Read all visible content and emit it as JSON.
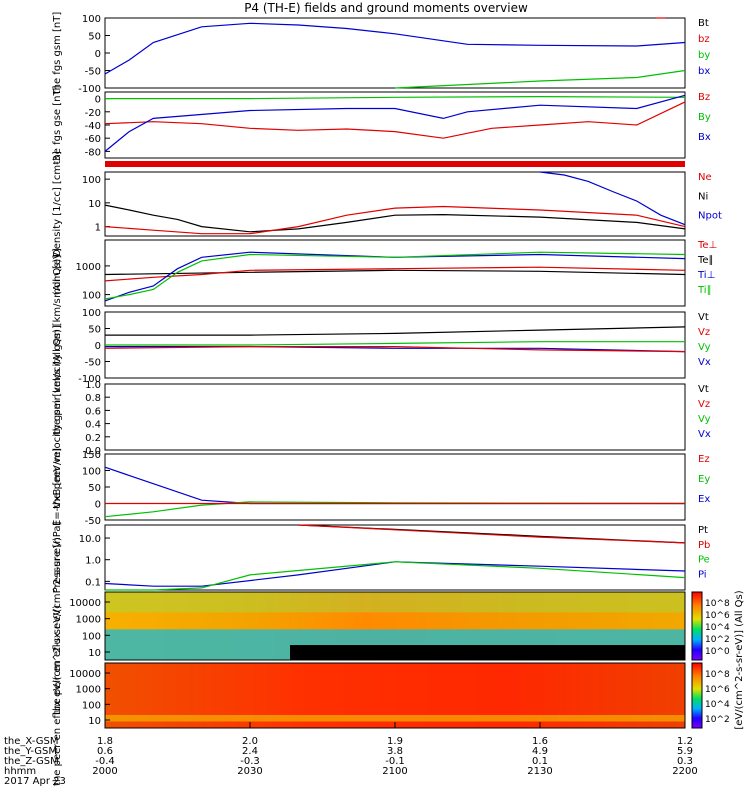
{
  "title": "P4 (TH-E) fields and ground moments overview",
  "footer": {
    "rows": [
      {
        "label": "the_X-GSM",
        "values": [
          "1.8",
          "2.0",
          "1.9",
          "1.6",
          "1.2"
        ]
      },
      {
        "label": "the_Y-GSM",
        "values": [
          "0.6",
          "2.4",
          "3.8",
          "4.9",
          "5.9"
        ]
      },
      {
        "label": "the_Z-GSM",
        "values": [
          "-0.4",
          "-0.3",
          "-0.1",
          "0.1",
          "0.3"
        ]
      },
      {
        "label": "hhmm",
        "values": [
          "2000",
          "2030",
          "2100",
          "2130",
          "2200"
        ]
      }
    ],
    "date": "2017 Apr 23"
  },
  "colorbars": [
    {
      "ticks": [
        "10^8",
        "10^6",
        "10^4",
        "10^2",
        "10^0"
      ]
    },
    {
      "ticks": [
        "10^8",
        "10^6",
        "10^4",
        "10^2"
      ]
    }
  ],
  "colorbar_label": "[eV/(cm^2-s-sr-eV)] (All Qs)",
  "chart_data": [
    {
      "type": "line",
      "ylabel": "the fgs gsm [nT]",
      "ylim": [
        -100,
        100
      ],
      "yticks": [
        "100",
        "50",
        "0",
        "-50",
        "-100"
      ],
      "legend": [
        "Bt",
        "bz",
        "by",
        "bx"
      ],
      "legend_colors": [
        "#000000",
        "#e00000",
        "#00c000",
        "#0000d0"
      ],
      "series": [
        {
          "name": "bx",
          "color": "#0000d0",
          "x": [
            2000,
            2005,
            2010,
            2020,
            2030,
            2040,
            2050,
            2100,
            2110,
            2115,
            2130,
            2150,
            2200
          ],
          "values": [
            -60,
            -20,
            30,
            75,
            85,
            80,
            70,
            55,
            35,
            25,
            22,
            20,
            30
          ]
        },
        {
          "name": "by",
          "color": "#00c000",
          "x": [
            2100,
            2130,
            2150,
            2200
          ],
          "values": [
            -100,
            -80,
            -70,
            -50
          ]
        },
        {
          "name": "bz",
          "color": "#e00000",
          "x": [
            2154,
            2156
          ],
          "values": [
            100,
            100
          ]
        }
      ]
    },
    {
      "type": "line",
      "ylabel": "the fgs gse [nT]",
      "ylim": [
        -90,
        10
      ],
      "yticks": [
        "0",
        "-20",
        "-40",
        "-60",
        "-80"
      ],
      "legend": [
        "Bz",
        "By",
        "Bx"
      ],
      "legend_colors": [
        "#e00000",
        "#00c000",
        "#0000d0"
      ],
      "series": [
        {
          "name": "Bz",
          "color": "#e00000",
          "x": [
            2000,
            2010,
            2020,
            2030,
            2040,
            2050,
            2100,
            2110,
            2120,
            2130,
            2140,
            2150,
            2200
          ],
          "values": [
            -38,
            -35,
            -38,
            -45,
            -48,
            -46,
            -50,
            -60,
            -45,
            -40,
            -35,
            -40,
            -5
          ]
        },
        {
          "name": "By",
          "color": "#00c000",
          "x": [
            2000,
            2030,
            2100,
            2130,
            2200
          ],
          "values": [
            0,
            0,
            2,
            3,
            2
          ]
        },
        {
          "name": "Bx",
          "color": "#0000d0",
          "x": [
            2000,
            2005,
            2010,
            2030,
            2050,
            2100,
            2110,
            2115,
            2130,
            2150,
            2200
          ],
          "values": [
            -80,
            -50,
            -30,
            -18,
            -15,
            -15,
            -30,
            -20,
            -10,
            -15,
            5
          ]
        }
      ]
    },
    {
      "type": "line",
      "ylabel": "Density [1/cc] [cm-3]",
      "ylim": [
        0.4,
        200
      ],
      "yscale": "log",
      "yticks": [
        "100",
        "10",
        "1"
      ],
      "legend": [
        "Ne",
        "Ni",
        "Npot"
      ],
      "legend_colors": [
        "#e00000",
        "#000000",
        "#0000d0"
      ],
      "series": [
        {
          "name": "Ni",
          "color": "#000000",
          "x": [
            2000,
            2005,
            2010,
            2015,
            2020,
            2030,
            2040,
            2050,
            2100,
            2110,
            2130,
            2150,
            2200
          ],
          "values": [
            8,
            5,
            3,
            2,
            1,
            0.6,
            0.8,
            1.5,
            3,
            3.2,
            2.5,
            1.5,
            0.8
          ]
        },
        {
          "name": "Ne",
          "color": "#e00000",
          "x": [
            2000,
            2010,
            2020,
            2030,
            2040,
            2050,
            2100,
            2110,
            2130,
            2150,
            2200
          ],
          "values": [
            1,
            0.7,
            0.5,
            0.5,
            1,
            3,
            6,
            7,
            5,
            3,
            1
          ]
        },
        {
          "name": "Npot",
          "color": "#0000d0",
          "x": [
            2130,
            2135,
            2140,
            2145,
            2150,
            2155,
            2200
          ],
          "values": [
            200,
            150,
            80,
            30,
            12,
            3,
            1.2
          ]
        }
      ]
    },
    {
      "type": "line",
      "ylabel": "mom [eV]",
      "ylim": [
        40,
        8000
      ],
      "yscale": "log",
      "yticks": [
        "1000",
        "100"
      ],
      "legend": [
        "Te⊥",
        "Te∥",
        "Ti⊥",
        "Ti∥"
      ],
      "legend_colors": [
        "#e00000",
        "#000000",
        "#0000d0",
        "#00c000"
      ],
      "series": [
        {
          "name": "Te∥",
          "color": "#000000",
          "x": [
            2000,
            2030,
            2100,
            2130,
            2200
          ],
          "values": [
            500,
            600,
            700,
            650,
            500
          ]
        },
        {
          "name": "Te⊥",
          "color": "#e00000",
          "x": [
            2000,
            2010,
            2020,
            2030,
            2100,
            2130,
            2200
          ],
          "values": [
            300,
            400,
            500,
            700,
            800,
            900,
            700
          ]
        },
        {
          "name": "Ti⊥",
          "color": "#0000d0",
          "x": [
            2000,
            2005,
            2010,
            2015,
            2020,
            2030,
            2100,
            2130,
            2200
          ],
          "values": [
            60,
            120,
            200,
            800,
            2000,
            3000,
            2000,
            2500,
            1800
          ]
        },
        {
          "name": "Ti∥",
          "color": "#00c000",
          "x": [
            2000,
            2005,
            2010,
            2015,
            2020,
            2030,
            2100,
            2130,
            2200
          ],
          "values": [
            70,
            100,
            150,
            600,
            1500,
            2500,
            2000,
            3000,
            2500
          ]
        }
      ]
    },
    {
      "type": "line",
      "ylabel": "the peir velocity gsm [km/s (All Qs)]",
      "ylim": [
        -100,
        100
      ],
      "yticks": [
        "100",
        "50",
        "0",
        "-50",
        "-100"
      ],
      "legend": [
        "Vt",
        "Vz",
        "Vy",
        "Vx"
      ],
      "legend_colors": [
        "#000000",
        "#e00000",
        "#00c000",
        "#0000d0"
      ],
      "series": [
        {
          "name": "Vt",
          "color": "#000000",
          "x": [
            2000,
            2030,
            2100,
            2130,
            2200
          ],
          "values": [
            30,
            30,
            35,
            45,
            55
          ]
        },
        {
          "name": "Vy",
          "color": "#00c000",
          "x": [
            2000,
            2030,
            2100,
            2130,
            2200
          ],
          "values": [
            0,
            0,
            5,
            10,
            10
          ]
        },
        {
          "name": "Vx",
          "color": "#0000d0",
          "x": [
            2000,
            2030,
            2100,
            2130,
            2200
          ],
          "values": [
            -5,
            -5,
            -10,
            -10,
            -20
          ]
        },
        {
          "name": "Vz",
          "color": "#e00000",
          "x": [
            2000,
            2030,
            2100,
            2130,
            2200
          ],
          "values": [
            -10,
            -5,
            -5,
            -15,
            -20
          ]
        }
      ]
    },
    {
      "type": "line",
      "ylabel": "the peer velocity gsm [km/s (All Qs)]",
      "ylim": [
        0,
        1
      ],
      "yticks": [
        "1.0",
        "0.8",
        "0.6",
        "0.4",
        "0.2",
        "0.0"
      ],
      "legend": [
        "Vt",
        "Vz",
        "Vy",
        "Vx"
      ],
      "legend_colors": [
        "#000000",
        "#e00000",
        "#00c000",
        "#0000d0"
      ],
      "series": []
    },
    {
      "type": "line",
      "ylabel": "E=-VxB [mV/m]",
      "ylim": [
        -50,
        150
      ],
      "yticks": [
        "150",
        "100",
        "50",
        "0",
        "-50"
      ],
      "legend": [
        "Ez",
        "Ey",
        "Ex"
      ],
      "legend_colors": [
        "#e00000",
        "#00c000",
        "#0000d0"
      ],
      "series": [
        {
          "name": "Ex",
          "color": "#0000d0",
          "x": [
            2000,
            2010,
            2020,
            2030,
            2100,
            2200
          ],
          "values": [
            110,
            60,
            10,
            0,
            0,
            0
          ]
        },
        {
          "name": "Ey",
          "color": "#00c000",
          "x": [
            2000,
            2010,
            2020,
            2030,
            2100,
            2200
          ],
          "values": [
            -40,
            -25,
            -5,
            5,
            2,
            0
          ]
        },
        {
          "name": "Ez",
          "color": "#e00000",
          "x": [
            2000,
            2100,
            2200
          ],
          "values": [
            0,
            0,
            0
          ]
        }
      ]
    },
    {
      "type": "line",
      "ylabel": "Pressure [nPa]",
      "ylim": [
        0.04,
        40
      ],
      "yscale": "log",
      "yticks": [
        "10.0",
        "1.0",
        "0.1"
      ],
      "legend": [
        "Pt",
        "Pb",
        "Pe",
        "Pi"
      ],
      "legend_colors": [
        "#000000",
        "#e00000",
        "#00c000",
        "#0000d0"
      ],
      "series": [
        {
          "name": "Pt",
          "color": "#000000",
          "x": [
            2040,
            2100,
            2130,
            2200
          ],
          "values": [
            40,
            25,
            12,
            6
          ]
        },
        {
          "name": "Pb",
          "color": "#e00000",
          "x": [
            2040,
            2100,
            2130,
            2200
          ],
          "values": [
            40,
            24,
            11,
            6
          ]
        },
        {
          "name": "Pi",
          "color": "#0000d0",
          "x": [
            2000,
            2010,
            2020,
            2040,
            2100,
            2130,
            2200
          ],
          "values": [
            0.08,
            0.06,
            0.06,
            0.2,
            0.8,
            0.5,
            0.3
          ]
        },
        {
          "name": "Pe",
          "color": "#00c000",
          "x": [
            2000,
            2010,
            2020,
            2030,
            2100,
            2130,
            2200
          ],
          "values": [
            0.04,
            0.04,
            0.05,
            0.2,
            0.8,
            0.4,
            0.15
          ]
        }
      ]
    },
    {
      "type": "heatmap",
      "ylabel": "the peir en eflux eV/(cm^2-s-sr-eV)",
      "yscale": "log",
      "yticks": [
        "10000",
        "1000",
        "100",
        "10"
      ]
    },
    {
      "type": "heatmap",
      "ylabel": "the peer en eflux eV/(cm^2-s-sr-eV)",
      "yscale": "log",
      "yticks": [
        "10000",
        "1000",
        "100",
        "10"
      ]
    }
  ]
}
